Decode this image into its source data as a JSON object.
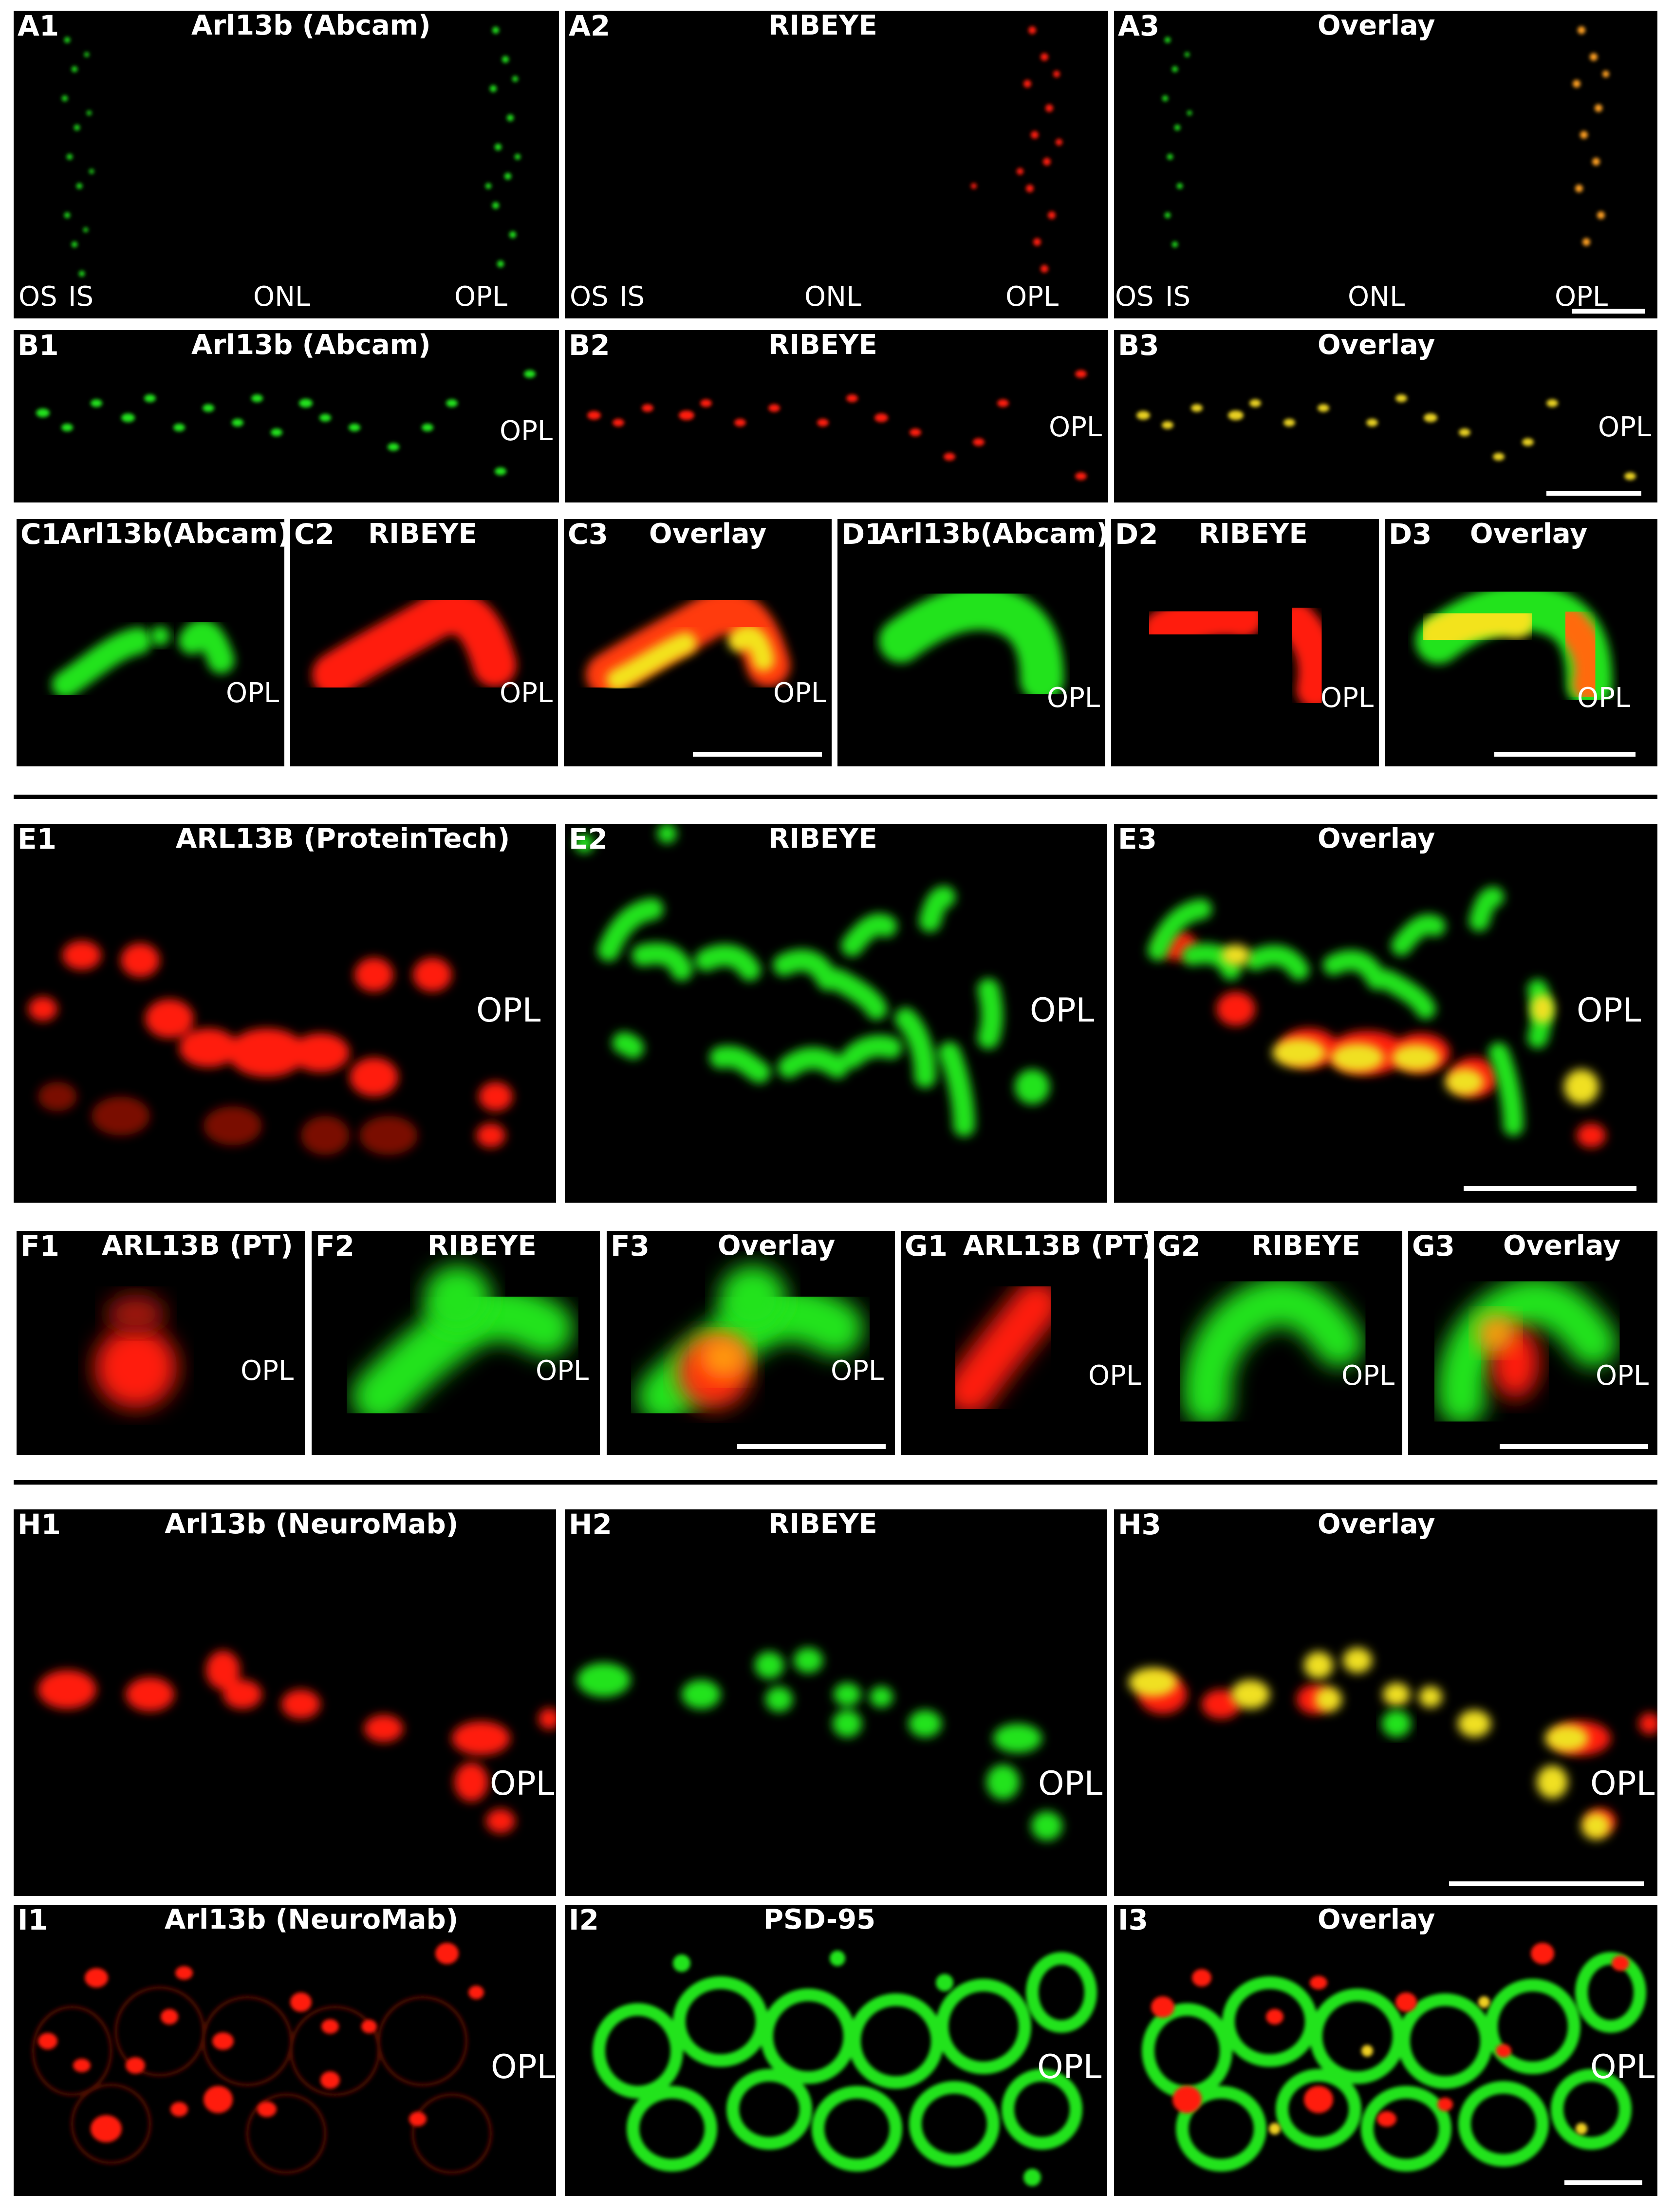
{
  "colors": {
    "green": "#22e31f",
    "red": "#ff1a0a",
    "yellow": "#ffcc00",
    "white": "#ffffff"
  },
  "rows": {
    "A": {
      "panels": [
        {
          "label": "A1",
          "title": "Arl13b (Abcam)",
          "regions": [
            "OS",
            "IS",
            "ONL",
            "OPL"
          ]
        },
        {
          "label": "A2",
          "title": "RIBEYE",
          "regions": [
            "OS",
            "IS",
            "ONL",
            "OPL"
          ]
        },
        {
          "label": "A3",
          "title": "Overlay",
          "regions": [
            "OS",
            "IS",
            "ONL",
            "OPL"
          ]
        }
      ]
    },
    "B": {
      "panels": [
        {
          "label": "B1",
          "title": "Arl13b (Abcam)",
          "region": "OPL"
        },
        {
          "label": "B2",
          "title": "RIBEYE",
          "region": "OPL"
        },
        {
          "label": "B3",
          "title": "Overlay",
          "region": "OPL"
        }
      ]
    },
    "CD": {
      "panels": [
        {
          "label": "C1",
          "title": "Arl13b(Abcam)",
          "region": "OPL"
        },
        {
          "label": "C2",
          "title": "RIBEYE",
          "region": "OPL"
        },
        {
          "label": "C3",
          "title": "Overlay",
          "region": "OPL"
        },
        {
          "label": "D1",
          "title": "Arl13b(Abcam)",
          "region": "OPL"
        },
        {
          "label": "D2",
          "title": "RIBEYE",
          "region": "OPL"
        },
        {
          "label": "D3",
          "title": "Overlay",
          "region": "OPL"
        }
      ]
    },
    "E": {
      "panels": [
        {
          "label": "E1",
          "title": "ARL13B (ProteinTech)",
          "region": "OPL"
        },
        {
          "label": "E2",
          "title": "RIBEYE",
          "region": "OPL"
        },
        {
          "label": "E3",
          "title": "Overlay",
          "region": "OPL"
        }
      ]
    },
    "FG": {
      "panels": [
        {
          "label": "F1",
          "title": "ARL13B (PT)",
          "region": "OPL"
        },
        {
          "label": "F2",
          "title": "RIBEYE",
          "region": "OPL"
        },
        {
          "label": "F3",
          "title": "Overlay",
          "region": "OPL"
        },
        {
          "label": "G1",
          "title": "ARL13B (PT)",
          "region": "OPL"
        },
        {
          "label": "G2",
          "title": "RIBEYE",
          "region": "OPL"
        },
        {
          "label": "G3",
          "title": "Overlay",
          "region": "OPL"
        }
      ]
    },
    "H": {
      "panels": [
        {
          "label": "H1",
          "title": "Arl13b (NeuroMab)",
          "region": "OPL"
        },
        {
          "label": "H2",
          "title": "RIBEYE",
          "region": "OPL"
        },
        {
          "label": "H3",
          "title": "Overlay",
          "region": "OPL"
        }
      ]
    },
    "I": {
      "panels": [
        {
          "label": "I1",
          "title": "Arl13b (NeuroMab)",
          "region": "OPL"
        },
        {
          "label": "I2",
          "title": "PSD-95",
          "region": "OPL"
        },
        {
          "label": "I3",
          "title": "Overlay",
          "region": "OPL"
        }
      ]
    }
  }
}
